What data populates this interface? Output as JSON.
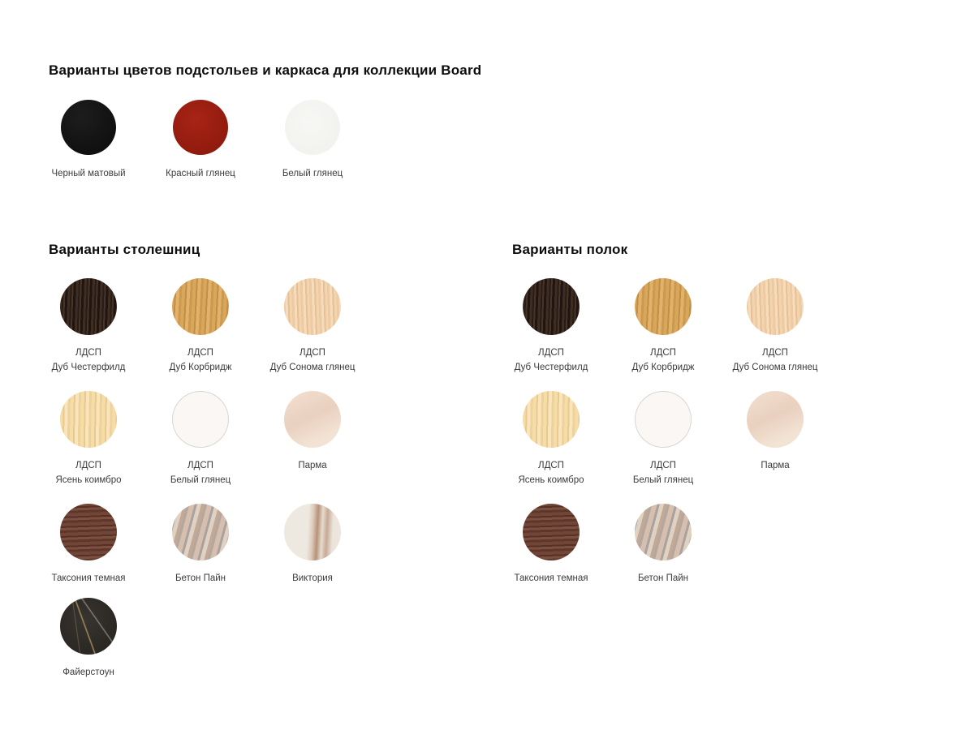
{
  "page": {
    "background": "#ffffff",
    "heading_color": "#0d0d0d",
    "label_color": "#3c3c3c"
  },
  "frame_section": {
    "title": "Варианты цветов подстольев и каркаса для коллекции Board",
    "swatches": [
      {
        "label": "Черный матовый",
        "texture": "black-matte",
        "color": "#141414"
      },
      {
        "label": "Красный глянец",
        "texture": "red-gloss",
        "color": "#9d1d11"
      },
      {
        "label": "Белый глянец",
        "texture": "white-gloss",
        "color": "#f4f4f2"
      }
    ]
  },
  "tabletop_section": {
    "title": "Варианты столешниц",
    "swatches": [
      {
        "line1": "ЛДСП",
        "line2": "Дуб Честерфилд",
        "texture": "oak-chesterfield",
        "color": "#352720"
      },
      {
        "line1": "ЛДСП",
        "line2": "Дуб Корбридж",
        "texture": "oak-corbridge",
        "color": "#d3a055"
      },
      {
        "line1": "ЛДСП",
        "line2": "Дуб Сонома глянец",
        "texture": "sonoma-gloss",
        "color": "#eecaa4"
      },
      {
        "line1": "ЛДСП",
        "line2": "Ясень коимбро",
        "texture": "ash-coimbro",
        "color": "#f1d5a0"
      },
      {
        "line1": "ЛДСП",
        "line2": "Белый глянец",
        "texture": "white-gloss-board",
        "color": "#faf7f4"
      },
      {
        "line1": "Парма",
        "line2": "",
        "texture": "parma",
        "color": "#ecd5c4"
      },
      {
        "line1": "Таксония темная",
        "line2": "",
        "texture": "taxonia-dark",
        "color": "#6b4233"
      },
      {
        "line1": "Бетон Пайн",
        "line2": "",
        "texture": "beton-pine",
        "color": "#c9b4a5"
      },
      {
        "line1": "Виктория",
        "line2": "",
        "texture": "victoria",
        "color": "#e5dcd2"
      },
      {
        "line1": "Файерстоун",
        "line2": "",
        "texture": "firestone",
        "color": "#2f2c28"
      }
    ]
  },
  "shelf_section": {
    "title": "Варианты полок",
    "swatches": [
      {
        "line1": "ЛДСП",
        "line2": "Дуб Честерфилд",
        "texture": "oak-chesterfield",
        "color": "#352720"
      },
      {
        "line1": "ЛДСП",
        "line2": "Дуб Корбридж",
        "texture": "oak-corbridge",
        "color": "#d3a055"
      },
      {
        "line1": "ЛДСП",
        "line2": "Дуб Сонома глянец",
        "texture": "sonoma-gloss",
        "color": "#eecaa4"
      },
      {
        "line1": "ЛДСП",
        "line2": "Ясень коимбро",
        "texture": "ash-coimbro",
        "color": "#f1d5a0"
      },
      {
        "line1": "ЛДСП",
        "line2": "Белый глянец",
        "texture": "white-gloss-board",
        "color": "#faf7f4"
      },
      {
        "line1": "Парма",
        "line2": "",
        "texture": "parma",
        "color": "#ecd5c4"
      },
      {
        "line1": "Таксония темная",
        "line2": "",
        "texture": "taxonia-dark",
        "color": "#6b4233"
      },
      {
        "line1": "Бетон Пайн",
        "line2": "",
        "texture": "beton-pine",
        "color": "#c9b4a5"
      }
    ]
  }
}
